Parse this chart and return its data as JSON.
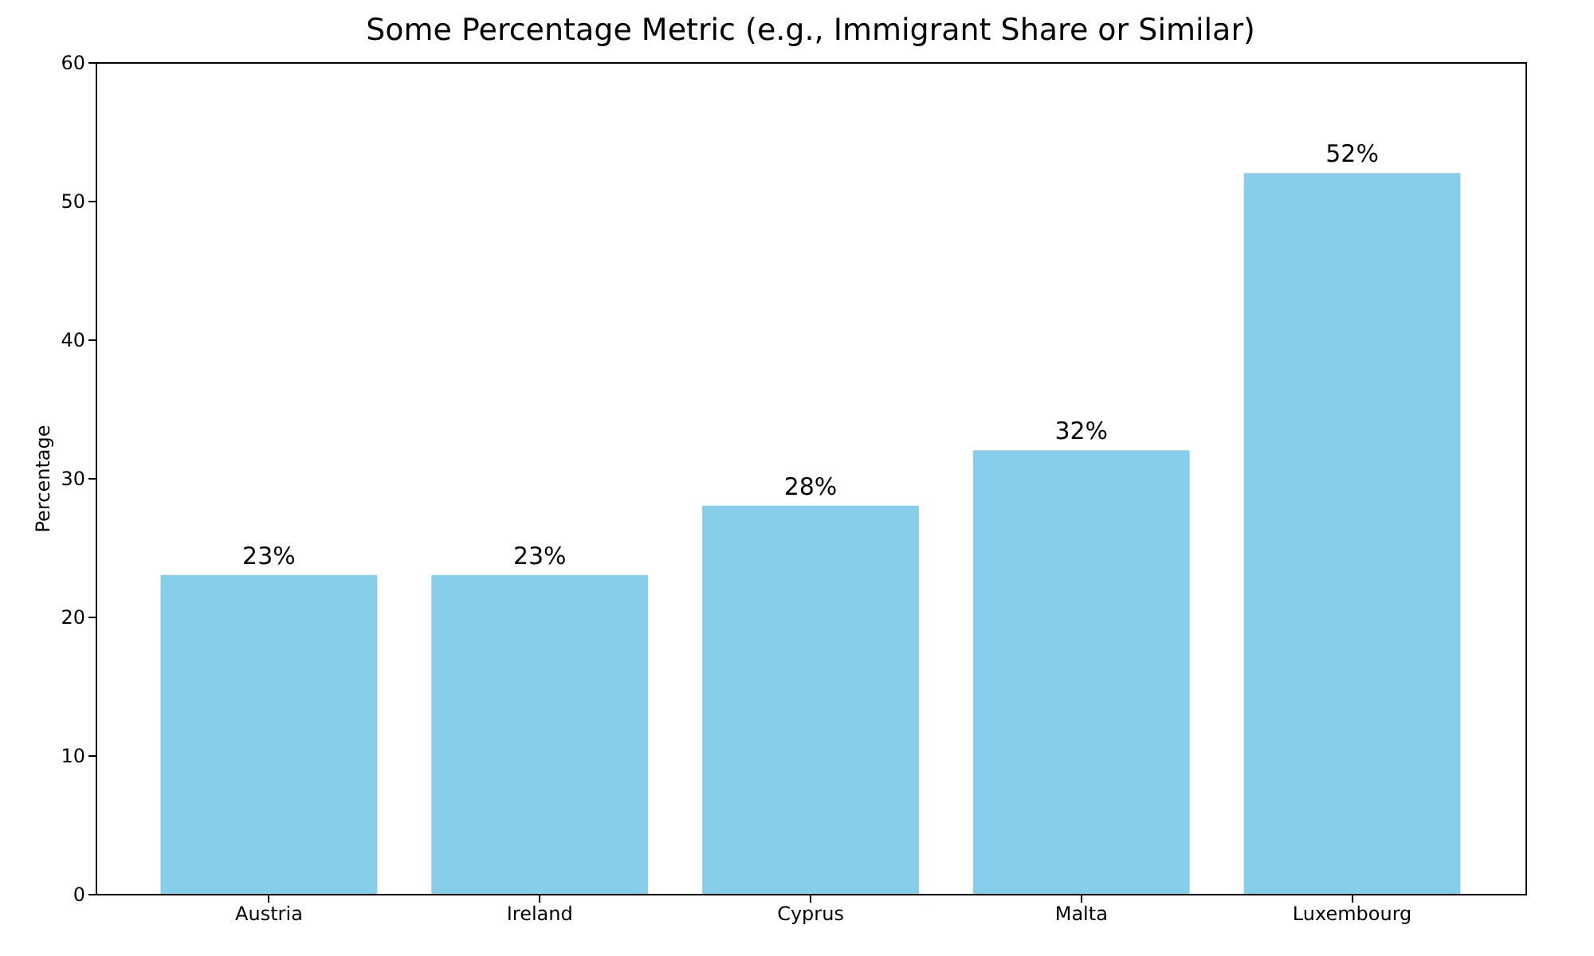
{
  "chart_data": {
    "type": "bar",
    "title": "Some Percentage Metric (e.g., Immigrant Share or Similar)",
    "ylabel": "Percentage",
    "categories": [
      "Austria",
      "Ireland",
      "Cyprus",
      "Malta",
      "Luxembourg"
    ],
    "values": [
      23,
      23,
      28,
      32,
      52
    ],
    "value_labels": [
      "23%",
      "23%",
      "28%",
      "32%",
      "52%"
    ],
    "color": "#87ceeb",
    "ylim": [
      0,
      60
    ],
    "yticks": [
      0,
      10,
      20,
      30,
      40,
      50,
      60
    ],
    "grid": false
  }
}
